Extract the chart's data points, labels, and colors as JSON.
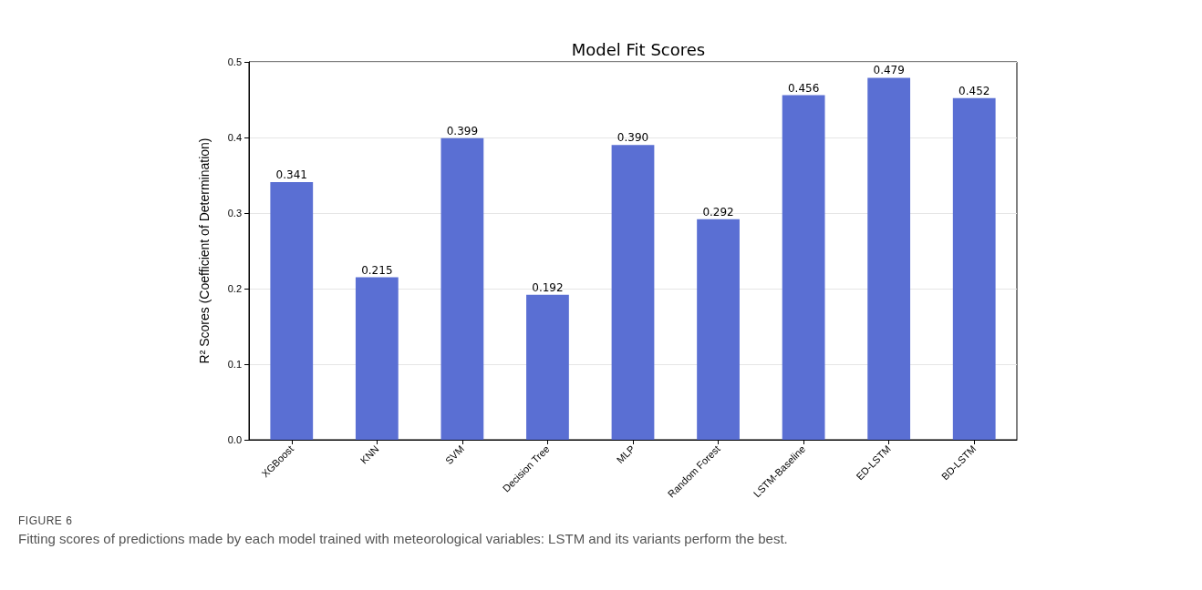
{
  "chart_data": {
    "type": "bar",
    "title": "Model Fit Scores",
    "ylabel": "R² Scores (Coefficient of Determination)",
    "categories": [
      "XGBoost",
      "KNN",
      "SVM",
      "Decision Tree",
      "MLP",
      "Random Forest",
      "LSTM-Baseline",
      "ED-LSTM",
      "BD-LSTM"
    ],
    "values": [
      0.341,
      0.215,
      0.399,
      0.192,
      0.39,
      0.292,
      0.456,
      0.479,
      0.452
    ],
    "value_labels": [
      "0.341",
      "0.215",
      "0.399",
      "0.192",
      "0.390",
      "0.292",
      "0.456",
      "0.479",
      "0.452"
    ],
    "color": "#5a6fd3",
    "ylim": [
      0,
      0.5
    ],
    "yticks": [
      {
        "value": 0,
        "label": "0.0"
      },
      0.1,
      0.2,
      0.3,
      0.4,
      0.5
    ],
    "grid": "y",
    "annotations": [
      "FIGURE 6",
      "Fitting scores of predictions made by each model trained with meteorological variables: LSTM and its variants perform the best."
    ]
  }
}
